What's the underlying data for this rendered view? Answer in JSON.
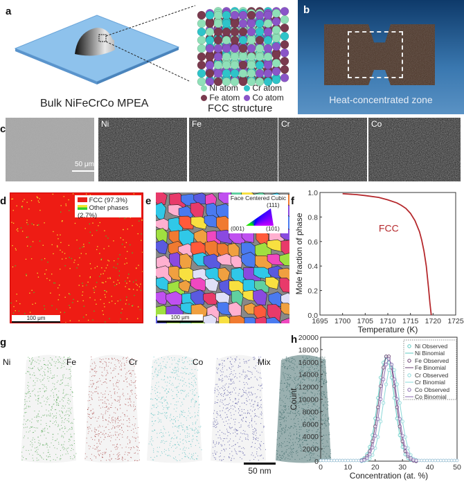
{
  "panels": {
    "a": {
      "label": "a",
      "sample_caption": "Bulk NiFeCrCo MPEA",
      "structure_caption": "FCC structure",
      "atoms": [
        {
          "name": "Ni atom",
          "color": "#8fe0b8"
        },
        {
          "name": "Cr atom",
          "color": "#2ec4c9"
        },
        {
          "name": "Fe atom",
          "color": "#7a3a4e"
        },
        {
          "name": "Co atom",
          "color": "#8a55c8"
        }
      ]
    },
    "b": {
      "label": "b",
      "caption": "Heat-concentrated zone"
    },
    "c": {
      "label": "c",
      "scale_bar": "50 μm",
      "maps": [
        {
          "name": "",
          "color": "#9a9a9a"
        },
        {
          "name": "Ni",
          "color": "#9fe0b0"
        },
        {
          "name": "Fe",
          "color": "#e070a8"
        },
        {
          "name": "Cr",
          "color": "#40d0c8"
        },
        {
          "name": "Co",
          "color": "#9a60e0"
        }
      ]
    },
    "d": {
      "label": "d",
      "scale_bar": "100 μm",
      "legend": [
        {
          "text": "FCC (97.3%)",
          "color": "#e8201a"
        },
        {
          "text": "Other phases (2.7%)",
          "color": "#f2e830",
          "color2": "#30d030"
        }
      ]
    },
    "e": {
      "label": "e",
      "scale_bar": "100 μm",
      "key_title": "Face Centered Cubic",
      "key_corners": [
        "(111)",
        "(001)",
        "(101)"
      ]
    },
    "g": {
      "label": "g",
      "scale_bar": "50 nm",
      "maps": [
        {
          "name": "Ni",
          "color": "#3a9a3a"
        },
        {
          "name": "Fe",
          "color": "#a03030"
        },
        {
          "name": "Cr",
          "color": "#40b8b8"
        },
        {
          "name": "Co",
          "color": "#303090"
        },
        {
          "name": "Mix",
          "color": "#2a5a5a"
        }
      ]
    }
  },
  "chart_data": [
    {
      "panel": "f",
      "type": "line",
      "xlabel": "Temperature (K)",
      "ylabel": "Mole fraction of phase",
      "xlim": [
        1695,
        1725
      ],
      "ylim": [
        0,
        1.0
      ],
      "xticks": [
        "1695",
        "1700",
        "1705",
        "1710",
        "1715",
        "1720",
        "1725"
      ],
      "yticks": [
        "0.0",
        "0.2",
        "0.4",
        "0.6",
        "0.8",
        "1.0"
      ],
      "annotation": "FCC",
      "color": "#b5282c",
      "series": [
        {
          "x": [
            1700,
            1703,
            1705,
            1708,
            1710,
            1712,
            1713,
            1714,
            1715,
            1716,
            1717,
            1717.5,
            1718,
            1718.5,
            1719,
            1719.3,
            1719.6
          ],
          "y": [
            0.99,
            0.983,
            0.975,
            0.96,
            0.94,
            0.915,
            0.895,
            0.87,
            0.83,
            0.77,
            0.68,
            0.61,
            0.52,
            0.4,
            0.22,
            0.1,
            0.0
          ]
        }
      ]
    },
    {
      "panel": "h",
      "type": "scatter",
      "xlabel": "Concentration (at. %)",
      "ylabel": "Count",
      "xlim": [
        0,
        50
      ],
      "ylim": [
        0,
        20000
      ],
      "xticks": [
        "0",
        "10",
        "20",
        "30",
        "40",
        "50"
      ],
      "yticks": [
        "0",
        "2000",
        "4000",
        "6000",
        "8000",
        "10000",
        "12000",
        "14000",
        "16000",
        "18000",
        "20000"
      ],
      "legend_position": "top-right",
      "x": [
        15,
        16,
        17,
        18,
        19,
        20,
        21,
        22,
        23,
        24,
        25,
        26,
        27,
        28,
        29,
        30,
        31,
        32,
        33,
        34,
        35
      ],
      "series": [
        {
          "name": "Ni Observed",
          "fit_name": "Ni Binomial",
          "color": "#5cc8c0",
          "values": [
            200,
            500,
            1100,
            2300,
            4200,
            6900,
            10200,
            13500,
            15900,
            16800,
            15900,
            13500,
            10200,
            6900,
            4200,
            2300,
            1100,
            500,
            200,
            100,
            0
          ]
        },
        {
          "name": "Fe Observed",
          "fit_name": "Fe Binomial",
          "color": "#6a4070",
          "values": [
            100,
            300,
            800,
            1600,
            3200,
            5600,
            8700,
            12100,
            15100,
            16900,
            16900,
            15100,
            12100,
            8700,
            5600,
            3200,
            1600,
            800,
            300,
            100,
            0
          ]
        },
        {
          "name": "Cr Observed",
          "fit_name": "Cr Binomial",
          "color": "#8ad8d8",
          "values": [
            0,
            100,
            200,
            400,
            1000,
            2100,
            3900,
            6400,
            9400,
            12400,
            14700,
            15500,
            14700,
            12400,
            9400,
            6400,
            3900,
            2100,
            1000,
            400,
            200
          ]
        },
        {
          "name": "Co Observed",
          "fit_name": "Co Binomial",
          "color": "#8a6ab0",
          "values": [
            100,
            200,
            500,
            1100,
            2200,
            4100,
            6800,
            10000,
            13200,
            15600,
            16500,
            15600,
            13200,
            10000,
            6800,
            4100,
            2200,
            1100,
            500,
            200,
            100
          ]
        }
      ]
    }
  ]
}
